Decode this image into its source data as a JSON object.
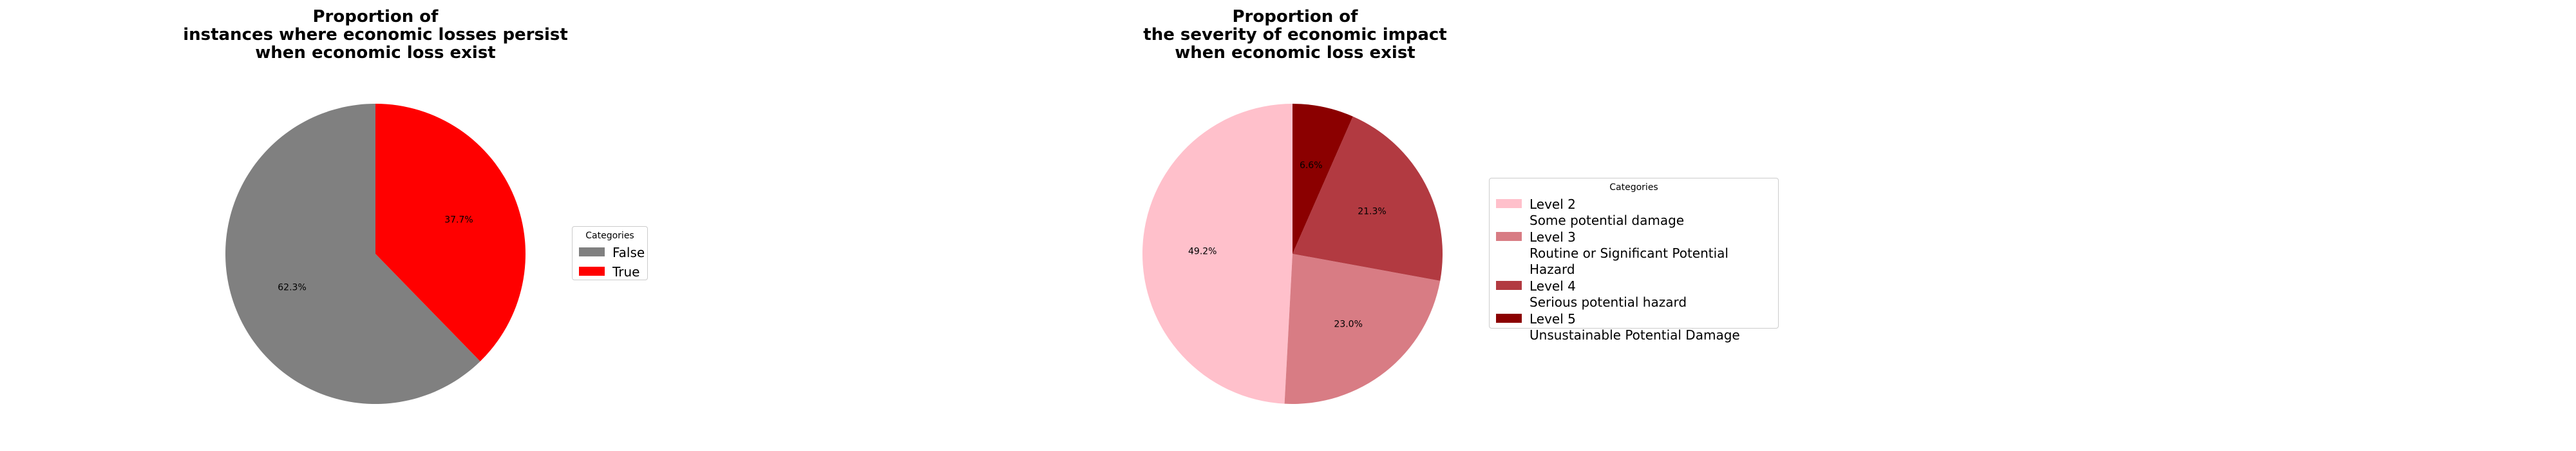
{
  "chart_data": [
    {
      "type": "pie",
      "title": "Proportion of\ninstances where economic losses persist\nwhen economic loss exist",
      "legend_title": "Categories",
      "legend_position": "right",
      "start_angle": 90,
      "direction": "counterclockwise",
      "categories": [
        "False",
        "True"
      ],
      "values": [
        62.3,
        37.7
      ],
      "labels": [
        "62.3%",
        "37.7%"
      ],
      "colors": [
        "#808080",
        "#ff0000"
      ]
    },
    {
      "type": "pie",
      "title": "Proportion of\nthe severity of economic impact\nwhen economic loss exist",
      "legend_title": "Categories",
      "legend_position": "right",
      "start_angle": 90,
      "direction": "counterclockwise",
      "categories": [
        "Level 2\nSome potential damage",
        "Level 3\nRoutine or Significant Potential Hazard",
        "Level 4\nSerious potential hazard",
        "Level 5\nUnsustainable Potential Damage"
      ],
      "values": [
        49.2,
        23.0,
        21.3,
        6.6
      ],
      "labels": [
        "49.2%",
        "23.0%",
        "21.3%",
        "6.6%"
      ],
      "colors": [
        "#ffc0cb",
        "#d87c84",
        "#b23a41",
        "#8b0000"
      ]
    }
  ]
}
